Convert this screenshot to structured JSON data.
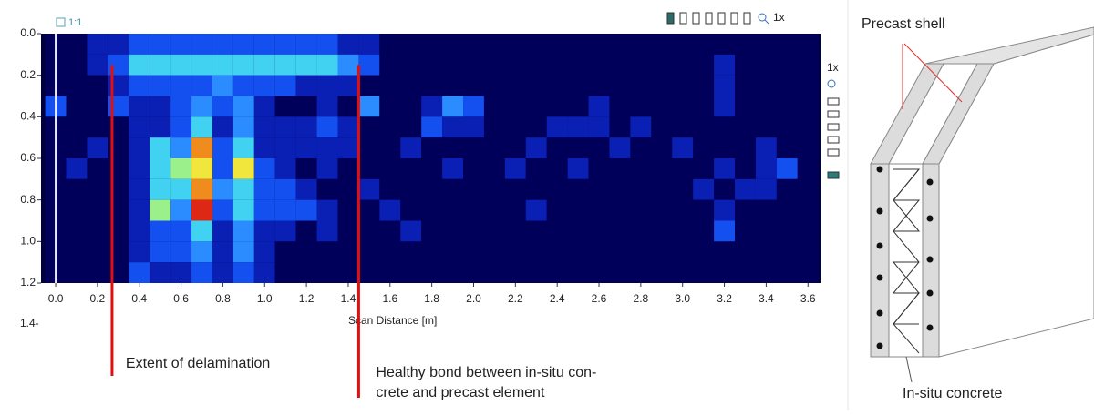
{
  "chart_data": {
    "type": "heatmap",
    "zoom_label": "1:1",
    "toolbar_zoom": "1x",
    "side_zoom": "1x",
    "xlabel": "Scan Distance [m]",
    "xlim": [
      -0.07,
      3.66
    ],
    "ylim": [
      0,
      1.2
    ],
    "y_inverted": true,
    "xticks": [
      {
        "value": 0,
        "label": "0.0"
      },
      0.2,
      0.4,
      0.6,
      0.8,
      {
        "value": 1,
        "label": "1.0"
      },
      1.2,
      1.4,
      1.6,
      1.8,
      {
        "value": 2,
        "label": "2.0"
      },
      2.2,
      2.4,
      2.6,
      2.8,
      {
        "value": 3,
        "label": "3.0"
      },
      3.2,
      3.4,
      3.6
    ],
    "yticks": [
      {
        "value": 0,
        "label": "0.0"
      },
      0.2,
      0.4,
      0.6,
      0.8,
      {
        "value": 1,
        "label": "1.0"
      },
      1.2
    ],
    "y_overflow_label": "1.4-",
    "x": [
      0,
      0.1,
      0.2,
      0.3,
      0.4,
      0.5,
      0.6,
      0.7,
      0.8,
      0.9,
      1,
      1.1,
      1.2,
      1.3,
      1.4,
      1.5,
      1.6,
      1.7,
      1.8,
      1.9,
      2,
      2.1,
      2.2,
      2.3,
      2.4,
      2.5,
      2.6,
      2.7,
      2.8,
      2.9,
      3,
      3.1,
      3.2,
      3.3,
      3.4,
      3.5,
      3.6
    ],
    "y": [
      0.05,
      0.15,
      0.25,
      0.35,
      0.45,
      0.55,
      0.65,
      0.75,
      0.85,
      0.95,
      1.05,
      1.15
    ],
    "colors": [
      "#000040",
      "#00005a",
      "#0a1fb4",
      "#1450f0",
      "#2a8cff",
      "#40d2f0",
      "#9cf08c",
      "#f0e63c",
      "#f08c1e",
      "#dc2814"
    ],
    "z": [
      [
        1,
        1,
        2,
        2,
        3,
        3,
        3,
        3,
        3,
        3,
        3,
        3,
        3,
        3,
        2,
        2,
        1,
        1,
        1,
        1,
        1,
        1,
        1,
        1,
        1,
        1,
        1,
        1,
        1,
        1,
        1,
        1,
        1,
        1,
        1,
        1,
        1
      ],
      [
        1,
        1,
        2,
        3,
        5,
        5,
        5,
        5,
        5,
        5,
        5,
        5,
        5,
        5,
        4,
        3,
        1,
        1,
        1,
        1,
        1,
        1,
        1,
        1,
        1,
        1,
        1,
        1,
        1,
        1,
        1,
        1,
        2,
        1,
        1,
        1,
        1
      ],
      [
        1,
        1,
        1,
        2,
        3,
        3,
        3,
        3,
        4,
        3,
        3,
        3,
        2,
        2,
        2,
        1,
        1,
        1,
        1,
        1,
        1,
        1,
        1,
        1,
        1,
        1,
        1,
        1,
        1,
        1,
        1,
        1,
        2,
        1,
        1,
        1,
        1
      ],
      [
        3,
        1,
        1,
        3,
        2,
        2,
        3,
        4,
        3,
        4,
        2,
        1,
        1,
        2,
        1,
        4,
        1,
        1,
        2,
        4,
        3,
        1,
        1,
        1,
        1,
        1,
        2,
        1,
        1,
        1,
        1,
        1,
        2,
        1,
        1,
        1,
        1
      ],
      [
        1,
        1,
        1,
        1,
        2,
        2,
        3,
        5,
        2,
        4,
        2,
        2,
        2,
        3,
        2,
        1,
        1,
        1,
        3,
        2,
        2,
        1,
        1,
        1,
        2,
        2,
        2,
        1,
        2,
        1,
        1,
        1,
        1,
        1,
        1,
        1,
        1
      ],
      [
        1,
        1,
        2,
        1,
        2,
        5,
        4,
        8,
        3,
        5,
        2,
        2,
        2,
        2,
        2,
        1,
        1,
        2,
        1,
        1,
        1,
        1,
        1,
        2,
        1,
        1,
        1,
        2,
        1,
        1,
        2,
        1,
        1,
        1,
        2,
        1,
        1
      ],
      [
        1,
        2,
        1,
        1,
        2,
        5,
        6,
        7,
        3,
        7,
        3,
        2,
        1,
        2,
        1,
        1,
        1,
        1,
        1,
        2,
        1,
        1,
        2,
        1,
        1,
        2,
        1,
        1,
        1,
        1,
        1,
        1,
        2,
        1,
        2,
        3,
        1
      ],
      [
        1,
        1,
        1,
        1,
        2,
        5,
        5,
        8,
        4,
        5,
        3,
        3,
        2,
        1,
        1,
        2,
        1,
        1,
        1,
        1,
        1,
        1,
        1,
        1,
        1,
        1,
        1,
        1,
        1,
        1,
        1,
        2,
        1,
        2,
        2,
        1,
        1
      ],
      [
        1,
        1,
        1,
        1,
        2,
        6,
        4,
        9,
        3,
        5,
        3,
        3,
        3,
        2,
        1,
        1,
        2,
        1,
        1,
        1,
        1,
        1,
        1,
        2,
        1,
        1,
        1,
        1,
        1,
        1,
        1,
        1,
        2,
        1,
        1,
        1,
        1
      ],
      [
        1,
        1,
        1,
        1,
        2,
        3,
        3,
        5,
        2,
        4,
        2,
        2,
        1,
        2,
        1,
        1,
        1,
        2,
        1,
        1,
        1,
        1,
        1,
        1,
        1,
        1,
        1,
        1,
        1,
        1,
        1,
        1,
        3,
        1,
        1,
        1,
        1
      ],
      [
        1,
        1,
        1,
        1,
        2,
        3,
        3,
        4,
        2,
        4,
        2,
        1,
        1,
        1,
        1,
        1,
        1,
        1,
        1,
        1,
        1,
        1,
        1,
        1,
        1,
        1,
        1,
        1,
        1,
        1,
        1,
        1,
        1,
        1,
        1,
        1,
        1
      ],
      [
        1,
        1,
        1,
        1,
        3,
        2,
        2,
        3,
        2,
        3,
        2,
        1,
        1,
        1,
        1,
        1,
        1,
        1,
        1,
        1,
        1,
        1,
        1,
        1,
        1,
        1,
        1,
        1,
        1,
        1,
        1,
        1,
        1,
        1,
        1,
        1,
        1
      ]
    ],
    "annotation_color": "#e01010",
    "annotations": [
      {
        "x": 0.27,
        "lines": [
          "Extent of delamination"
        ]
      },
      {
        "x": 1.45,
        "lines": [
          "Healthy bond between in-situ con-",
          "crete and precast element"
        ]
      }
    ]
  },
  "diagram": {
    "labels": [
      "Precast shell",
      "In-situ concrete"
    ]
  }
}
